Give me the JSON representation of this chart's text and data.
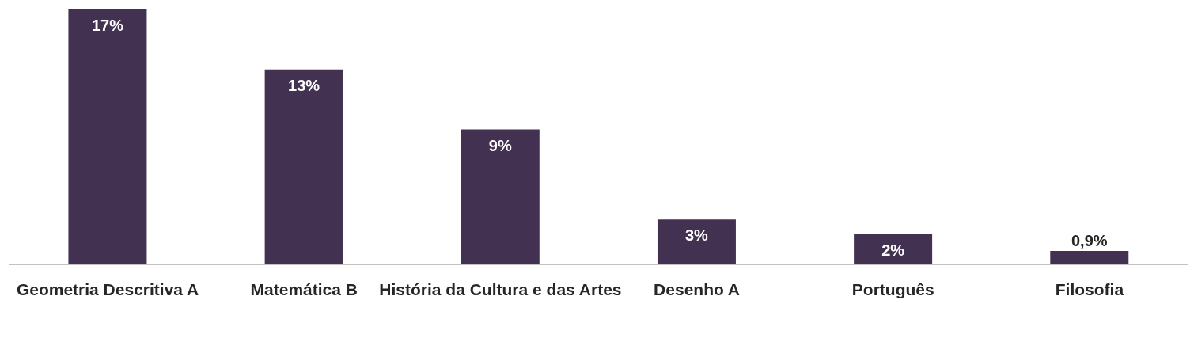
{
  "chart_data": {
    "type": "bar",
    "categories": [
      "Geometria Descritiva A",
      "Matemática B",
      "História da Cultura e das Artes",
      "Desenho A",
      "Português",
      "Filosofia"
    ],
    "values": [
      17,
      13,
      9,
      3,
      2,
      0.9
    ],
    "value_labels": [
      "17%",
      "13%",
      "9%",
      "3%",
      "2%",
      "0,9%"
    ],
    "color": "#433152",
    "grid": false,
    "legend": false
  }
}
